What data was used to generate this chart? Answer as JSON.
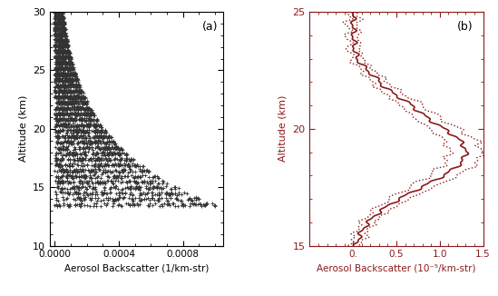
{
  "panel_a": {
    "xlabel": "Aerosol Backscatter (1/km-str)",
    "ylabel": "Altitude (km)",
    "label": "(a)",
    "xlim": [
      -3e-05,
      0.00105
    ],
    "ylim": [
      10,
      30
    ],
    "xticks": [
      0.0,
      0.0004,
      0.0008
    ],
    "yticks": [
      10,
      15,
      20,
      25,
      30
    ],
    "marker_color": "#333333",
    "marker": "+"
  },
  "panel_b": {
    "xlabel": "Aerosol Backscatter (10⁻⁵/km-str)",
    "ylabel": "Altitude (km)",
    "label": "(b)",
    "xlim": [
      -0.5,
      1.5
    ],
    "ylim": [
      15,
      25
    ],
    "xticks": [
      0.0,
      0.5,
      1.0,
      1.5
    ],
    "xtick_labels": [
      "0.",
      "0.5",
      "1.0",
      "1.5"
    ],
    "yticks": [
      15,
      20,
      25
    ],
    "line_color": "#8B1A1A",
    "dot_color": "#8B1A1A"
  },
  "figure_bg": "#ffffff"
}
